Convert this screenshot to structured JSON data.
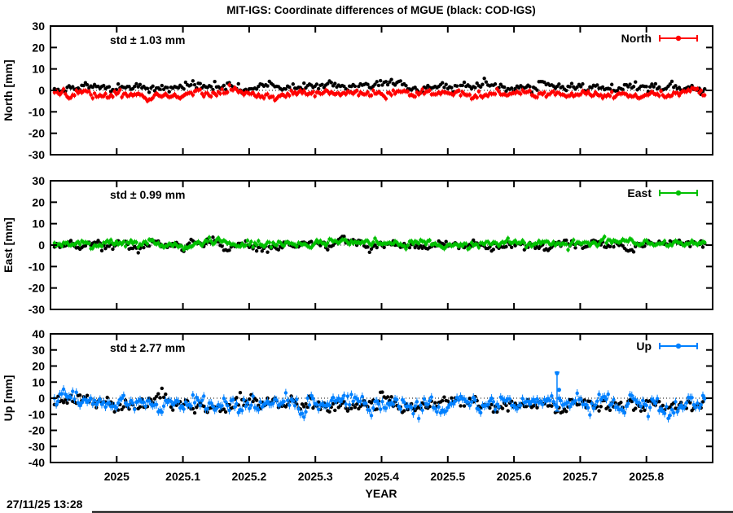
{
  "footer": {
    "timestamp": "27/11/25 13:28"
  },
  "chart_data": {
    "type": "scatter",
    "title": "MIT-IGS: Coordinate differences of MGUE (black: COD-IGS)",
    "xlabel": "YEAR",
    "x_range": [
      2024.9,
      2025.9
    ],
    "x_data_range": [
      2024.906,
      2025.888
    ],
    "n_points": 358,
    "x_ticks": [
      2025,
      2025.1,
      2025.2,
      2025.3,
      2025.4,
      2025.5,
      2025.6,
      2025.7,
      2025.8
    ],
    "x_tick_labels": [
      "2025",
      "2025.1",
      "2025.2",
      "2025.3",
      "2025.4",
      "2025.5",
      "2025.6",
      "2025.7",
      "2025.8"
    ],
    "grid": false,
    "legend_position": "top-right-inside",
    "panels": [
      {
        "id": "north",
        "ylabel": "North [mm]",
        "ylim": [
          -30,
          30
        ],
        "y_ticks": [
          -30,
          -20,
          -10,
          0,
          10,
          20,
          30
        ],
        "std_label": "std ± 1.03 mm",
        "legend_label": "North",
        "accent": "#ff0000",
        "zero_line": "dotted",
        "series": [
          {
            "name": "COD-IGS",
            "color": "#000000",
            "mean": 1.6,
            "std": 1.1,
            "seed": 11,
            "err": 0
          },
          {
            "name": "MIT-IGS",
            "color": "#ff0000",
            "mean": -1.6,
            "std": 1.03,
            "seed": 22,
            "err": 1.2
          }
        ]
      },
      {
        "id": "east",
        "ylabel": "East [mm]",
        "ylim": [
          -30,
          30
        ],
        "y_ticks": [
          -30,
          -20,
          -10,
          0,
          10,
          20,
          30
        ],
        "std_label": "std ± 0.99 mm",
        "legend_label": "East",
        "accent": "#00c000",
        "zero_line": "dotted",
        "series": [
          {
            "name": "COD-IGS",
            "color": "#000000",
            "mean": 0.0,
            "std": 1.3,
            "seed": 33,
            "err": 0
          },
          {
            "name": "MIT-IGS",
            "color": "#00c000",
            "mean": 0.5,
            "std": 0.99,
            "seed": 44,
            "err": 1.2
          }
        ]
      },
      {
        "id": "up",
        "ylabel": "Up [mm]",
        "ylim": [
          -40,
          40
        ],
        "y_ticks": [
          -40,
          -30,
          -20,
          -10,
          0,
          10,
          20,
          30,
          40
        ],
        "std_label": "std ± 2.77 mm",
        "legend_label": "Up",
        "accent": "#0080ff",
        "zero_line": "dotted",
        "series": [
          {
            "name": "COD-IGS",
            "color": "#000000",
            "mean": -3.8,
            "std": 2.6,
            "seed": 55,
            "err": 0
          },
          {
            "name": "MIT-IGS",
            "color": "#0080ff",
            "mean": -3.0,
            "std": 2.77,
            "seed": 66,
            "err": 2.5
          }
        ],
        "outliers": [
          {
            "x": 2025.665,
            "y": 15.5,
            "bar": [
              -8,
              16.2
            ]
          },
          {
            "x": 2025.668,
            "y": 5.2
          }
        ]
      }
    ]
  }
}
